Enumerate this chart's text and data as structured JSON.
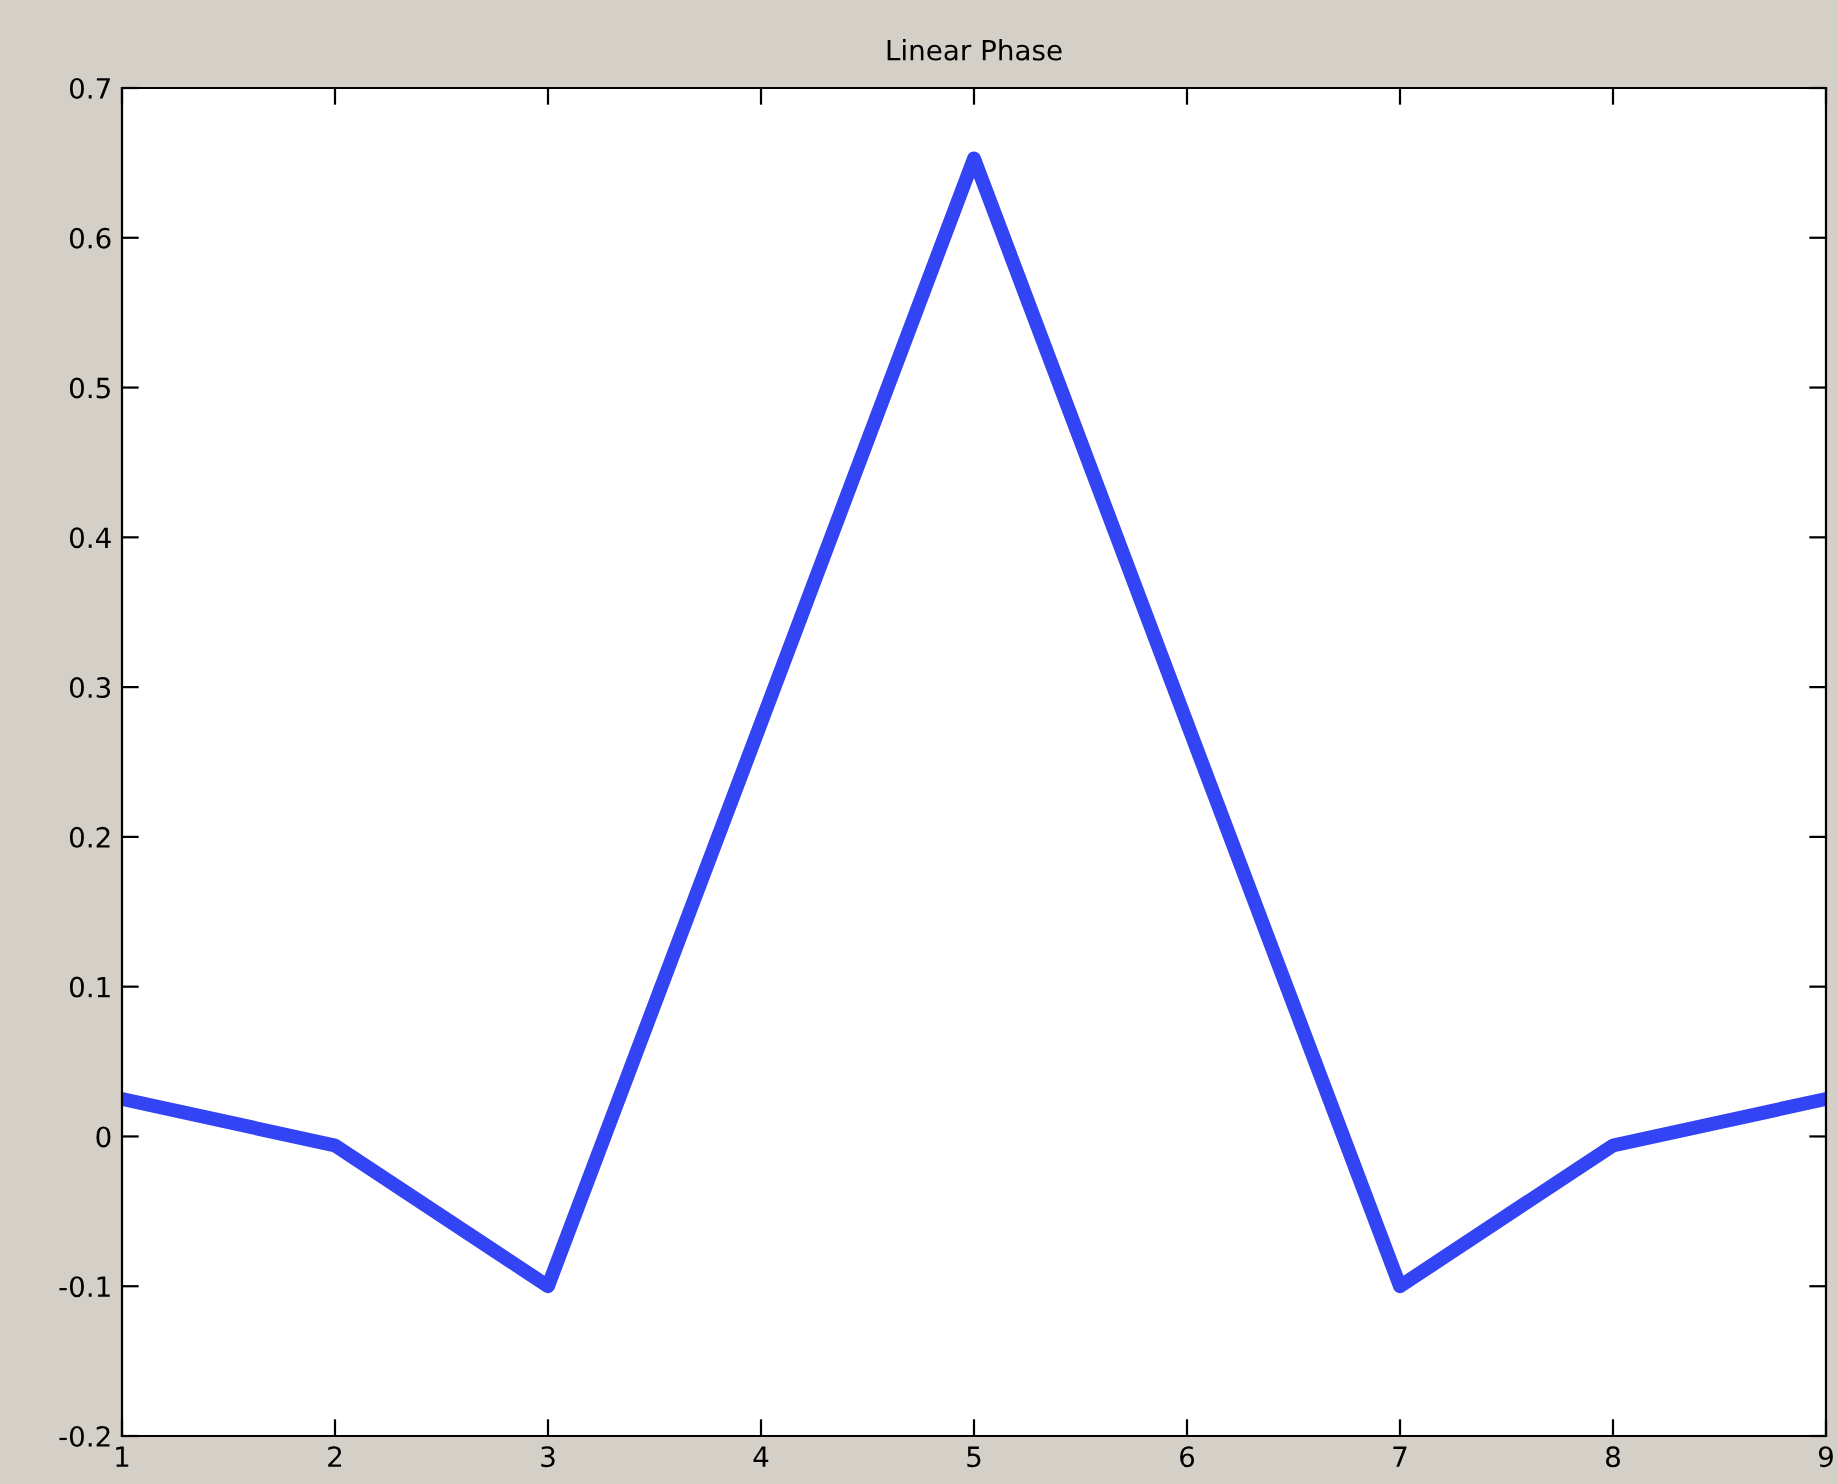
{
  "chart_data": {
    "type": "line",
    "title": "Linear Phase",
    "x": [
      1,
      2,
      3,
      4,
      5,
      6,
      7,
      8,
      9
    ],
    "series": [
      {
        "color": "#3344f5",
        "values": [
          0.025,
          -0.006,
          -0.1,
          0.276,
          0.653,
          0.276,
          -0.1,
          -0.006,
          0.025
        ]
      }
    ],
    "xlim": [
      1,
      9
    ],
    "xticks": [
      1,
      2,
      3,
      4,
      5,
      6,
      7,
      8,
      9
    ],
    "ylim": [
      -0.2,
      0.7
    ],
    "yticks": [
      -0.2,
      -0.1,
      0,
      0.1,
      0.2,
      0.3,
      0.4,
      0.5,
      0.6,
      0.7
    ],
    "grid": false,
    "legend": false,
    "marker": "none",
    "line_style": "solid"
  }
}
